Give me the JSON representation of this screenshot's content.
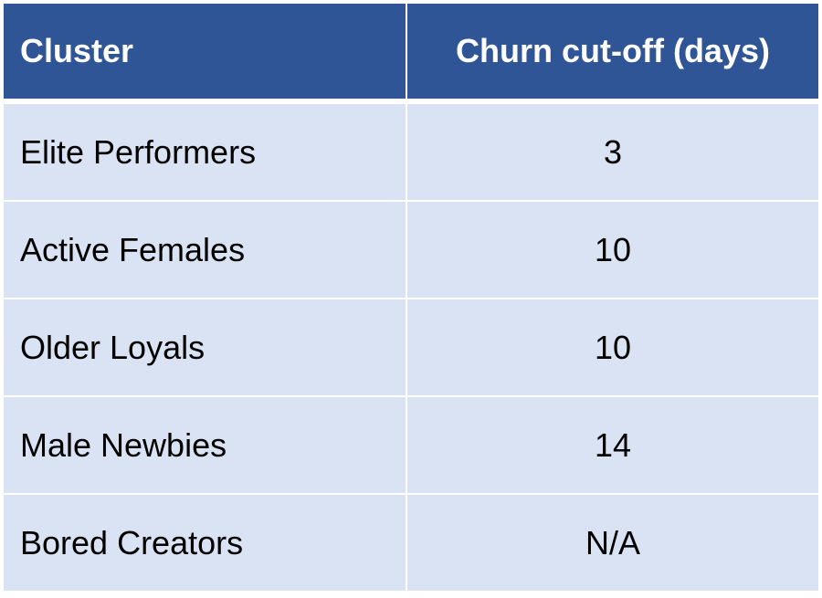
{
  "table": {
    "headers": {
      "cluster": "Cluster",
      "cutoff": "Churn cut-off (days)"
    },
    "rows": [
      {
        "cluster": "Elite Performers",
        "cutoff": "3"
      },
      {
        "cluster": "Active Females",
        "cutoff": "10"
      },
      {
        "cluster": "Older Loyals",
        "cutoff": "10"
      },
      {
        "cluster": "Male Newbies",
        "cutoff": "14"
      },
      {
        "cluster": "Bored Creators",
        "cutoff": "N/A"
      }
    ]
  },
  "colors": {
    "header_background": "#2f5597",
    "row_background": "#dae3f3",
    "header_text": "#ffffff",
    "body_text": "#000000"
  }
}
